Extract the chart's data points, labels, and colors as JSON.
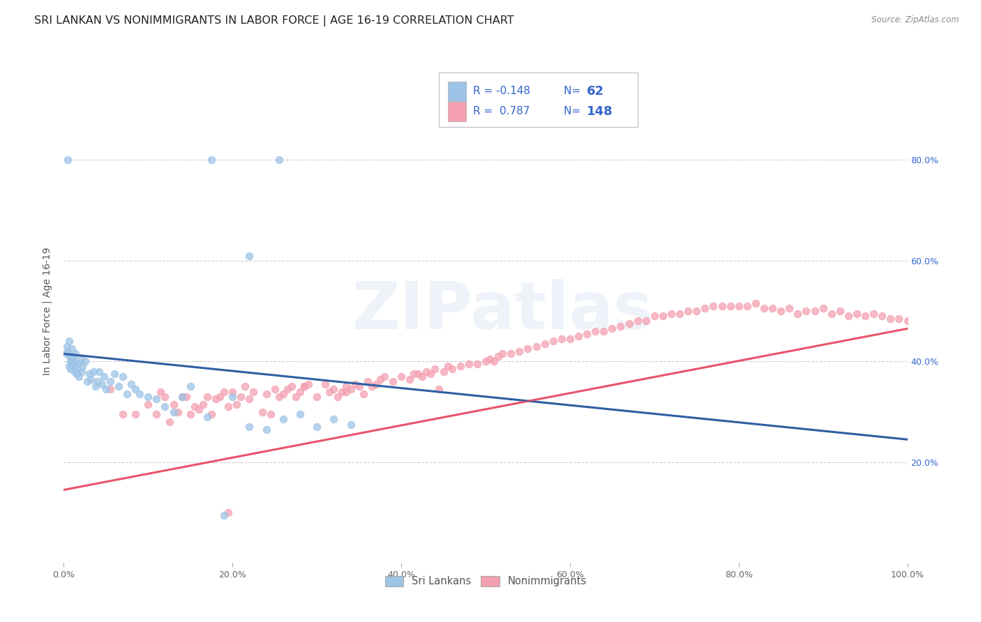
{
  "title": "SRI LANKAN VS NONIMMIGRANTS IN LABOR FORCE | AGE 16-19 CORRELATION CHART",
  "source": "Source: ZipAtlas.com",
  "ylabel": "In Labor Force | Age 16-19",
  "sri_lankan_color": "#9DC3E6",
  "nonimmigrant_color": "#F4A0B0",
  "sri_lankan_line_color": "#2E5FA3",
  "nonimmigrant_line_color": "#E8546A",
  "background_color": "#FFFFFF",
  "grid_color": "#CCCCCC",
  "tick_fontsize": 9,
  "scatter_size": 55,
  "scatter_alpha": 0.75,
  "xlim": [
    0.0,
    1.0
  ],
  "ylim": [
    0.0,
    1.0
  ],
  "sri_lankan_trendline": {
    "x_start": 0.0,
    "y_start": 0.415,
    "x_end": 1.0,
    "y_end": 0.245
  },
  "nonimmigrant_trendline": {
    "x_start": 0.0,
    "y_start": 0.145,
    "x_end": 1.0,
    "y_end": 0.465
  },
  "sri_lankans_x": [
    0.003,
    0.004,
    0.005,
    0.006,
    0.006,
    0.007,
    0.008,
    0.008,
    0.009,
    0.01,
    0.01,
    0.011,
    0.012,
    0.013,
    0.013,
    0.014,
    0.015,
    0.016,
    0.017,
    0.018,
    0.02,
    0.021,
    0.022,
    0.025,
    0.028,
    0.03,
    0.032,
    0.035,
    0.038,
    0.04,
    0.042,
    0.045,
    0.048,
    0.05,
    0.055,
    0.06,
    0.065,
    0.07,
    0.075,
    0.08,
    0.085,
    0.09,
    0.1,
    0.11,
    0.12,
    0.13,
    0.14,
    0.15,
    0.17,
    0.19,
    0.2,
    0.22,
    0.24,
    0.26,
    0.28,
    0.3,
    0.32,
    0.34,
    0.175,
    0.22,
    0.255,
    0.005
  ],
  "sri_lankans_y": [
    0.415,
    0.43,
    0.42,
    0.44,
    0.39,
    0.41,
    0.4,
    0.385,
    0.405,
    0.425,
    0.395,
    0.41,
    0.39,
    0.38,
    0.4,
    0.415,
    0.375,
    0.385,
    0.395,
    0.37,
    0.405,
    0.38,
    0.39,
    0.4,
    0.36,
    0.375,
    0.365,
    0.38,
    0.35,
    0.36,
    0.38,
    0.355,
    0.37,
    0.345,
    0.36,
    0.375,
    0.35,
    0.37,
    0.335,
    0.355,
    0.345,
    0.335,
    0.33,
    0.325,
    0.31,
    0.3,
    0.33,
    0.35,
    0.29,
    0.095,
    0.33,
    0.27,
    0.265,
    0.285,
    0.295,
    0.27,
    0.285,
    0.275,
    0.8,
    0.61,
    0.8,
    0.8
  ],
  "nonimmigrants_x": [
    0.055,
    0.07,
    0.085,
    0.1,
    0.11,
    0.115,
    0.125,
    0.13,
    0.135,
    0.14,
    0.15,
    0.155,
    0.16,
    0.165,
    0.17,
    0.175,
    0.18,
    0.185,
    0.19,
    0.195,
    0.2,
    0.205,
    0.21,
    0.215,
    0.22,
    0.225,
    0.235,
    0.24,
    0.245,
    0.25,
    0.255,
    0.26,
    0.265,
    0.27,
    0.275,
    0.28,
    0.285,
    0.29,
    0.3,
    0.31,
    0.315,
    0.32,
    0.325,
    0.33,
    0.335,
    0.34,
    0.345,
    0.35,
    0.355,
    0.36,
    0.365,
    0.37,
    0.375,
    0.38,
    0.39,
    0.4,
    0.41,
    0.42,
    0.425,
    0.43,
    0.435,
    0.44,
    0.45,
    0.455,
    0.46,
    0.47,
    0.48,
    0.49,
    0.5,
    0.505,
    0.51,
    0.515,
    0.52,
    0.53,
    0.54,
    0.55,
    0.56,
    0.57,
    0.58,
    0.59,
    0.6,
    0.61,
    0.62,
    0.63,
    0.64,
    0.65,
    0.66,
    0.67,
    0.68,
    0.69,
    0.7,
    0.71,
    0.72,
    0.73,
    0.74,
    0.75,
    0.76,
    0.77,
    0.78,
    0.79,
    0.8,
    0.81,
    0.82,
    0.83,
    0.84,
    0.85,
    0.86,
    0.87,
    0.88,
    0.89,
    0.9,
    0.91,
    0.92,
    0.93,
    0.94,
    0.95,
    0.96,
    0.97,
    0.98,
    0.99,
    1.0,
    0.12,
    0.145,
    0.195,
    0.285,
    0.335,
    0.445,
    0.415
  ],
  "nonimmigrants_y": [
    0.345,
    0.295,
    0.295,
    0.315,
    0.295,
    0.34,
    0.28,
    0.315,
    0.3,
    0.33,
    0.295,
    0.31,
    0.305,
    0.315,
    0.33,
    0.295,
    0.325,
    0.33,
    0.34,
    0.31,
    0.34,
    0.315,
    0.33,
    0.35,
    0.325,
    0.34,
    0.3,
    0.335,
    0.295,
    0.345,
    0.33,
    0.335,
    0.345,
    0.35,
    0.33,
    0.34,
    0.35,
    0.355,
    0.33,
    0.355,
    0.34,
    0.345,
    0.33,
    0.34,
    0.35,
    0.345,
    0.355,
    0.35,
    0.335,
    0.36,
    0.35,
    0.355,
    0.365,
    0.37,
    0.36,
    0.37,
    0.365,
    0.375,
    0.37,
    0.38,
    0.375,
    0.385,
    0.38,
    0.39,
    0.385,
    0.39,
    0.395,
    0.395,
    0.4,
    0.405,
    0.4,
    0.41,
    0.415,
    0.415,
    0.42,
    0.425,
    0.43,
    0.435,
    0.44,
    0.445,
    0.445,
    0.45,
    0.455,
    0.46,
    0.46,
    0.465,
    0.47,
    0.475,
    0.48,
    0.48,
    0.49,
    0.49,
    0.495,
    0.495,
    0.5,
    0.5,
    0.505,
    0.51,
    0.51,
    0.51,
    0.51,
    0.51,
    0.515,
    0.505,
    0.505,
    0.5,
    0.505,
    0.495,
    0.5,
    0.5,
    0.505,
    0.495,
    0.5,
    0.49,
    0.495,
    0.49,
    0.495,
    0.49,
    0.485,
    0.485,
    0.48,
    0.33,
    0.33,
    0.1,
    0.35,
    0.34,
    0.345,
    0.375
  ]
}
